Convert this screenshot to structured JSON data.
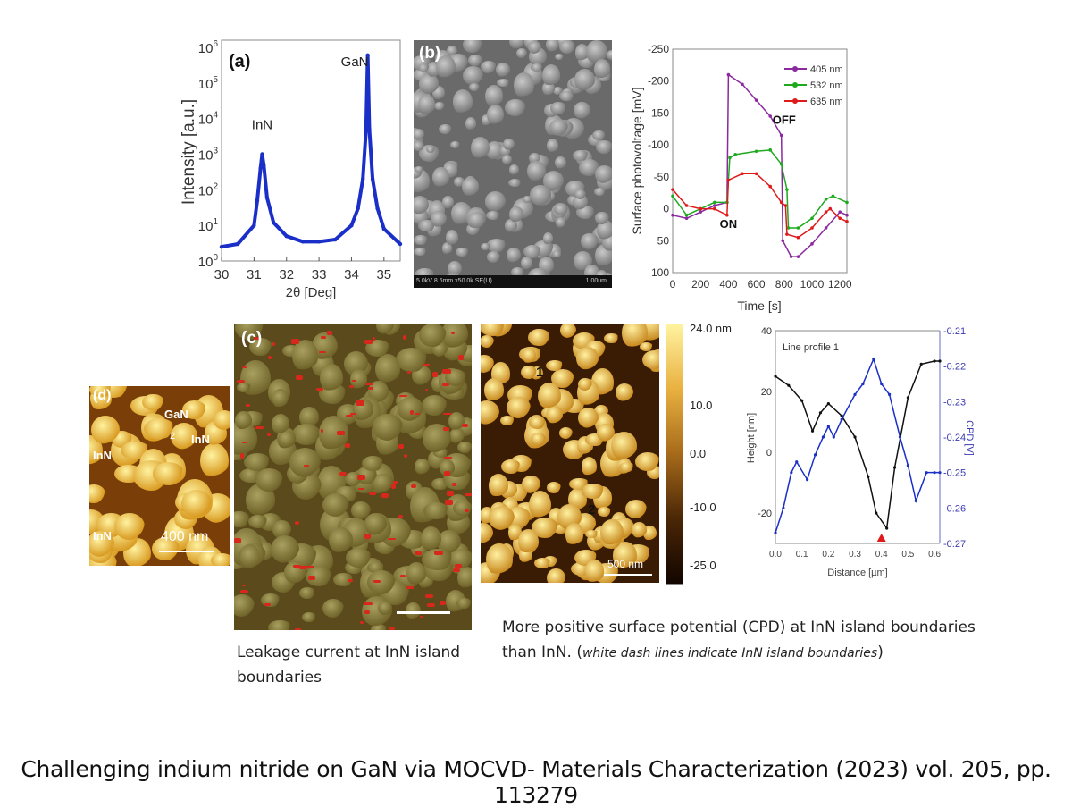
{
  "panels": {
    "b_label": "(b)",
    "b_info": "5.0kV 8.6mm x50.0k SE(U)",
    "b_scale": "1.00um",
    "c_label": "(c)",
    "d_label": "(d)",
    "d_annotations": [
      "GaN",
      "2",
      "InN",
      "InN",
      "InN",
      "InN"
    ],
    "d_scale": "400 nm",
    "kpfm_markers": [
      "1",
      "2"
    ],
    "kpfm_scale": "500 nm",
    "colorbar": {
      "labels": [
        "24.0 nm",
        "10.0",
        "0.0",
        "-10.0",
        "-25.0"
      ],
      "colors": [
        "#fff3a0",
        "#e9b040",
        "#a66a1a",
        "#4a2606",
        "#120500"
      ]
    }
  },
  "captions": {
    "leakage": "Leakage current at InN island boundaries",
    "cpd_line1": "More positive surface potential (CPD) at InN island boundaries",
    "cpd_line2_a": "than InN. (",
    "cpd_line2_b": "white dash lines indicate InN island boundaries",
    "cpd_line2_c": ")",
    "footer": "Challenging indium nitride on GaN via MOCVD- Materials Characterization (2023) vol. 205, pp. 113279"
  },
  "chart_data": [
    {
      "type": "line",
      "panel_label": "(a)",
      "xlabel": "2θ [Deg]",
      "ylabel": "Intensity [a.u.]",
      "xlim": [
        30,
        35.5
      ],
      "ylim": [
        1,
        1000000
      ],
      "yscale": "log",
      "xticks": [
        30,
        31,
        32,
        33,
        34,
        35
      ],
      "yticks": [
        "10^0",
        "10^1",
        "10^2",
        "10^3",
        "10^4",
        "10^5",
        "10^6"
      ],
      "annotations": [
        "InN",
        "GaN"
      ],
      "color": "#1a2fc8",
      "x": [
        30,
        30.5,
        31,
        31.1,
        31.2,
        31.25,
        31.3,
        31.4,
        31.6,
        32,
        32.5,
        33,
        33.5,
        34,
        34.2,
        34.35,
        34.45,
        34.5,
        34.55,
        34.65,
        34.8,
        35,
        35.5
      ],
      "y": [
        2.5,
        3,
        10,
        50,
        400,
        1000,
        500,
        60,
        12,
        5,
        3.5,
        3.5,
        4,
        10,
        30,
        200,
        5000,
        600000,
        5000,
        200,
        30,
        8,
        3
      ]
    },
    {
      "type": "line",
      "xlabel": "Time [s]",
      "ylabel": "Surface photovoltage [mV]",
      "xlim": [
        0,
        1250
      ],
      "ylim": [
        100,
        -250
      ],
      "xticks": [
        0,
        200,
        400,
        600,
        800,
        1000,
        1200
      ],
      "yticks": [
        -250,
        -200,
        -150,
        -100,
        -50,
        0,
        50,
        100
      ],
      "annotations": [
        "ON",
        "OFF"
      ],
      "legend": "top-right",
      "series": [
        {
          "name": "405 nm",
          "color": "#8a2a9e",
          "x": [
            0,
            100,
            200,
            300,
            390,
            400,
            500,
            600,
            700,
            780,
            790,
            850,
            900,
            1000,
            1100,
            1200,
            1250
          ],
          "y": [
            10,
            15,
            5,
            -5,
            -10,
            -210,
            -195,
            -170,
            -145,
            -115,
            50,
            75,
            75,
            55,
            30,
            5,
            10
          ]
        },
        {
          "name": "532 nm",
          "color": "#1eaa1e",
          "x": [
            0,
            100,
            200,
            300,
            390,
            410,
            450,
            600,
            700,
            780,
            820,
            830,
            900,
            1000,
            1100,
            1150,
            1250
          ],
          "y": [
            -20,
            10,
            0,
            -10,
            -10,
            -80,
            -85,
            -90,
            -92,
            -70,
            -30,
            30,
            30,
            15,
            -15,
            -20,
            -10
          ]
        },
        {
          "name": "635 nm",
          "color": "#e01a1a",
          "x": [
            0,
            100,
            200,
            300,
            390,
            400,
            500,
            600,
            700,
            780,
            810,
            820,
            900,
            1000,
            1100,
            1130,
            1200,
            1250
          ],
          "y": [
            -30,
            -5,
            0,
            0,
            10,
            -45,
            -55,
            -55,
            -35,
            -10,
            -5,
            40,
            45,
            30,
            5,
            0,
            15,
            20
          ]
        }
      ]
    },
    {
      "type": "line",
      "title": "Line profile 1",
      "xlabel": "Distance [µm]",
      "ylabel": "Height [nm]",
      "y2label": "CPD [V]",
      "xlim": [
        0,
        0.62
      ],
      "ylim": [
        -30,
        40
      ],
      "y2lim": [
        -0.27,
        -0.21
      ],
      "xticks": [
        "0.0",
        "0.1",
        "0.2",
        "0.3",
        "0.4",
        "0.5",
        "0.6"
      ],
      "yticks": [
        -20,
        0,
        20,
        40
      ],
      "y2ticks": [
        "-0.21",
        "-0.22",
        "-0.23",
        "-0.24",
        "-0.25",
        "-0.26",
        "-0.27"
      ],
      "marker_x": 0.4,
      "series": [
        {
          "axis": "left",
          "color": "#111111",
          "x": [
            0,
            0.05,
            0.1,
            0.14,
            0.17,
            0.2,
            0.25,
            0.3,
            0.35,
            0.38,
            0.42,
            0.45,
            0.5,
            0.55,
            0.6,
            0.62
          ],
          "y": [
            25,
            22,
            17,
            7,
            13,
            16,
            12,
            5,
            -8,
            -20,
            -25,
            -5,
            18,
            29,
            30,
            30
          ]
        },
        {
          "axis": "right",
          "color": "#1a2fc8",
          "x": [
            0,
            0.03,
            0.06,
            0.08,
            0.12,
            0.15,
            0.18,
            0.2,
            0.22,
            0.25,
            0.3,
            0.33,
            0.37,
            0.4,
            0.43,
            0.47,
            0.5,
            0.53,
            0.57,
            0.6,
            0.62
          ],
          "y": [
            -0.267,
            -0.26,
            -0.25,
            -0.247,
            -0.252,
            -0.245,
            -0.24,
            -0.237,
            -0.24,
            -0.235,
            -0.228,
            -0.225,
            -0.218,
            -0.225,
            -0.228,
            -0.24,
            -0.248,
            -0.258,
            -0.25,
            -0.25,
            -0.25
          ]
        }
      ]
    }
  ]
}
